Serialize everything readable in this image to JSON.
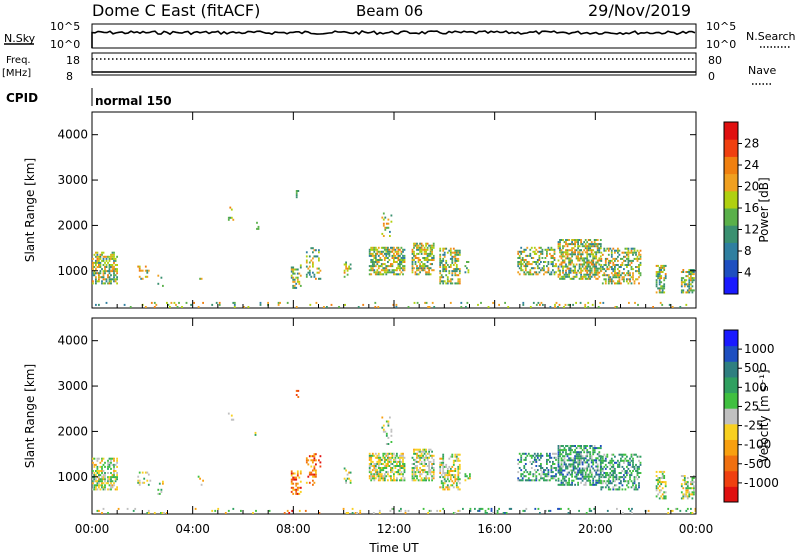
{
  "header": {
    "station": "Dome C East (fitACF)",
    "beam": "Beam 06",
    "date": "29/Nov/2019"
  },
  "params": {
    "nsky_label": "N.Sky",
    "nsearch_label": "N.Search",
    "freq_label_1": "Freq.",
    "freq_label_2": "[MHz]",
    "nave_label": "Nave",
    "cpid_label": "CPID",
    "cpid_value": "normal 150",
    "noise_ticks": [
      "10^5",
      "10^0"
    ],
    "noise_right_ticks": [
      "10^5",
      "10^0"
    ],
    "freq_ticks": [
      "18",
      "8"
    ],
    "nave_ticks": [
      "80",
      "0"
    ]
  },
  "colors": {
    "power_scale": [
      "#1a1aff",
      "#1e4fc0",
      "#2f7fa0",
      "#3a9070",
      "#5ab04a",
      "#b0d010",
      "#f0a020",
      "#f08010",
      "#f04010",
      "#e01010"
    ],
    "velocity_scale": [
      "#e01010",
      "#f04010",
      "#f07010",
      "#f8a010",
      "#f8d020",
      "#c0c0c0",
      "#40c040",
      "#30a060",
      "#2f7f80",
      "#1e4fc0",
      "#1a1aff"
    ]
  },
  "chart_data": [
    {
      "type": "heatmap",
      "panel": "power",
      "ylabel": "Slant Range [km]",
      "yticks": [
        "1000",
        "2000",
        "3000",
        "4000"
      ],
      "ylim": [
        180,
        4500
      ],
      "colorbar_label": "Power [dB]",
      "colorbar_ticks": [
        "4",
        "8",
        "12",
        "16",
        "20",
        "24",
        "28"
      ],
      "clim": [
        0,
        30
      ]
    },
    {
      "type": "heatmap",
      "panel": "velocity",
      "xlabel": "Time UT",
      "xticks": [
        "00:00",
        "04:00",
        "08:00",
        "12:00",
        "16:00",
        "20:00",
        "00:00"
      ],
      "xlim": [
        0,
        24
      ],
      "ylabel": "Slant Range [km]",
      "yticks": [
        "1000",
        "2000",
        "3000",
        "4000"
      ],
      "ylim": [
        180,
        4500
      ],
      "colorbar_label": "Velocity [m s⁻¹]",
      "colorbar_ticks": [
        "1000",
        "500",
        "100",
        "25",
        "-25",
        "-100",
        "-500",
        "-1000"
      ],
      "clim": [
        -1200,
        1200
      ]
    }
  ]
}
